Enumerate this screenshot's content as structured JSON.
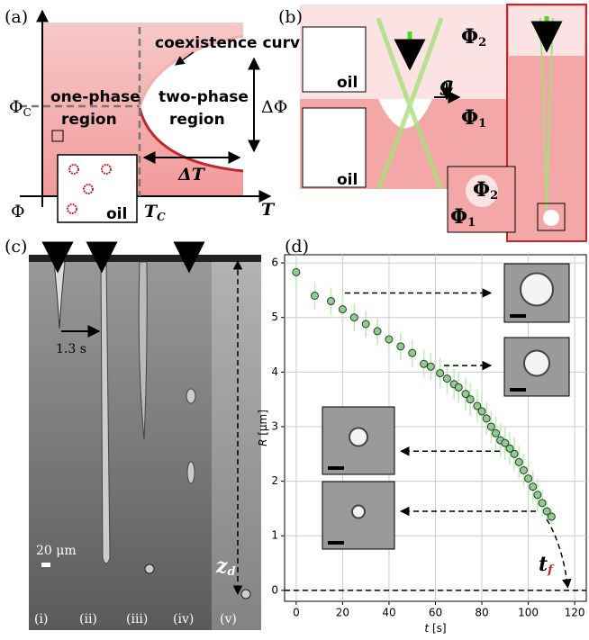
{
  "panel_a": {
    "label": "(a)",
    "curve": "coexistence curve",
    "one_phase": [
      "one-phase",
      "region"
    ],
    "two_phase": [
      "two-phase",
      "region"
    ],
    "phi_c": {
      "main": "Φ",
      "sub": "C"
    },
    "delta_phi": "ΔΦ",
    "delta_t": "ΔT",
    "phi": "Φ",
    "t_c": {
      "main": "T",
      "sub": "C"
    },
    "t": "T",
    "oil": "oil"
  },
  "panel_b": {
    "label": "(b)",
    "phi2": {
      "main": "Φ",
      "sub": "2"
    },
    "phi1": {
      "main": "Φ",
      "sub": "1"
    },
    "g": "g",
    "oil": [
      "oil",
      "oil"
    ],
    "inset_phi2": {
      "main": "Φ",
      "sub": "2"
    },
    "inset_phi1": {
      "main": "Φ",
      "sub": "1"
    }
  },
  "panel_c": {
    "label": "(c)",
    "time": "1.3 s",
    "scale": "20 μm",
    "z_d": {
      "main": "z",
      "sub": "d"
    },
    "columns": [
      "(i)",
      "(ii)",
      "(iii)",
      "(iv)",
      "(v)"
    ]
  },
  "chart_data": {
    "type": "scatter",
    "label": "(d)",
    "xlabel": {
      "main": "t",
      "unit": " [s]"
    },
    "ylabel": {
      "main": "R",
      "unit": " [μm]"
    },
    "annotation": {
      "main": "t",
      "sub": "f"
    },
    "x": [
      0,
      8,
      15,
      20,
      25,
      30,
      35,
      40,
      45,
      50,
      55,
      58,
      62,
      65,
      68,
      70,
      73,
      75,
      78,
      80,
      82,
      84,
      86,
      88,
      90,
      92,
      94,
      96,
      98,
      100,
      102,
      104,
      106,
      108,
      110
    ],
    "values": [
      5.83,
      5.4,
      5.3,
      5.15,
      5.0,
      4.88,
      4.75,
      4.6,
      4.47,
      4.35,
      4.15,
      4.1,
      3.98,
      3.88,
      3.78,
      3.72,
      3.6,
      3.5,
      3.38,
      3.28,
      3.15,
      3.0,
      2.88,
      2.75,
      2.7,
      2.6,
      2.5,
      2.35,
      2.2,
      2.05,
      1.9,
      1.75,
      1.6,
      1.45,
      1.35
    ],
    "errors": [
      0.25,
      0.25,
      0.25,
      0.25,
      0.25,
      0.25,
      0.25,
      0.25,
      0.25,
      0.25,
      0.25,
      0.25,
      0.28,
      0.28,
      0.28,
      0.28,
      0.3,
      0.3,
      0.3,
      0.3,
      0.3,
      0.3,
      0.3,
      0.3,
      0.3,
      0.3,
      0.3,
      0.3,
      0.3,
      0.3,
      0.3,
      0.3,
      0.25,
      0.2,
      0.15
    ],
    "color": "#8ccf8c",
    "error_color": "#b8f0b0",
    "xlim": [
      -5,
      125
    ],
    "ylim": [
      -0.2,
      6.15
    ],
    "xticks": [
      0,
      20,
      40,
      60,
      80,
      100,
      120
    ],
    "yticks": [
      0,
      1,
      2,
      3,
      4,
      5,
      6
    ],
    "grid": true
  }
}
